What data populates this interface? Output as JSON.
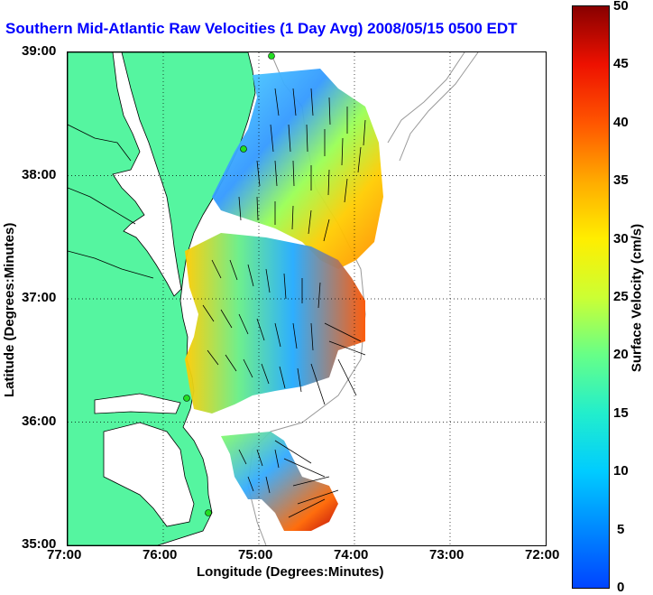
{
  "title": "Southern Mid-Atlantic Raw Velocities (1 Day Avg) 2008/05/15 0500 EDT",
  "x_axis": {
    "label": "Longitude (Degrees:Minutes)",
    "ticks": [
      "77:00",
      "76:00",
      "75:00",
      "74:00",
      "73:00",
      "72:00"
    ]
  },
  "y_axis": {
    "label": "Latitude (Degrees:Minutes)",
    "ticks": [
      "39:00",
      "38:00",
      "37:00",
      "36:00",
      "35:00"
    ]
  },
  "colorbar": {
    "label": "Surface Velocity (cm/s)",
    "ticks": [
      "50",
      "45",
      "40",
      "35",
      "30",
      "25",
      "20",
      "15",
      "10",
      "5",
      "0"
    ],
    "min": 0,
    "max": 50
  },
  "colors": {
    "land": "#55f5a0",
    "title": "#0000ff",
    "station": "#22dd22",
    "contour": "#999999"
  }
}
